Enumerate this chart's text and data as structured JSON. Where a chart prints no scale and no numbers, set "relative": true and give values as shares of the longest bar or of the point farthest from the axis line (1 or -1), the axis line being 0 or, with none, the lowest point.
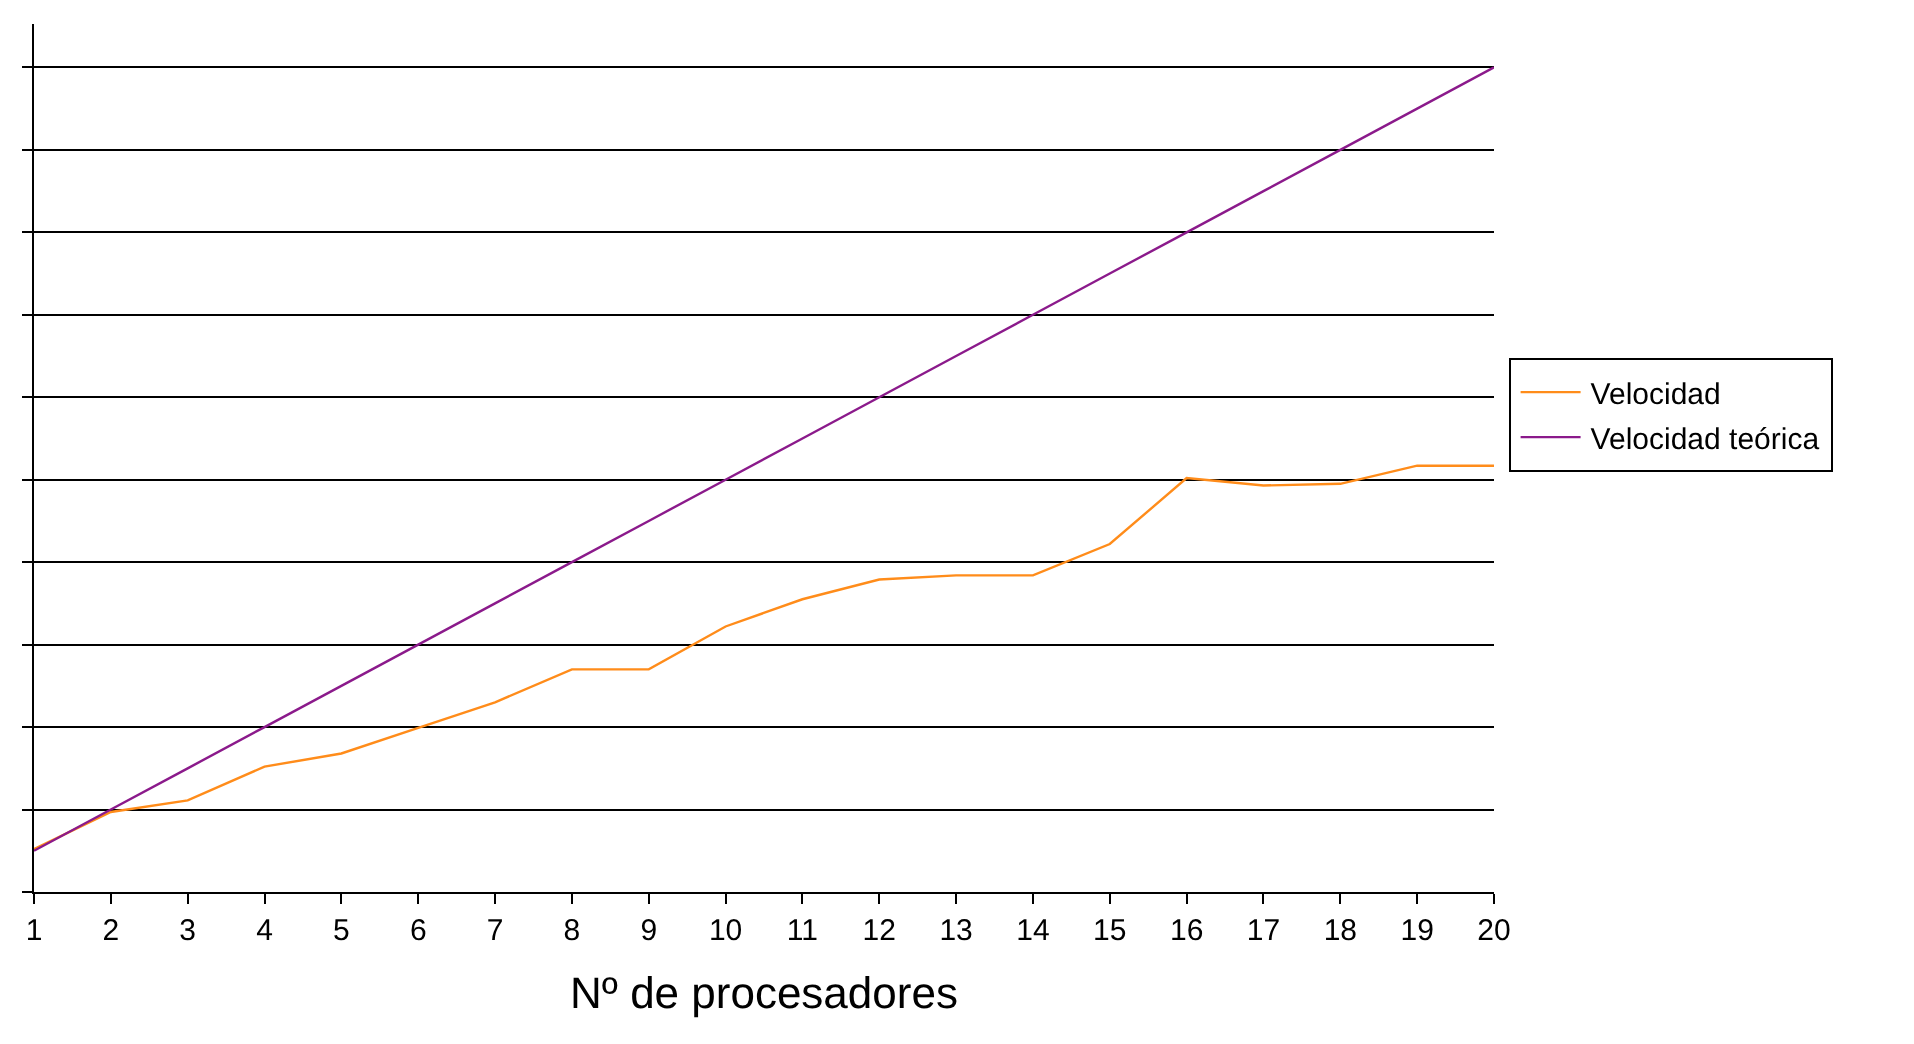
{
  "chart_data": {
    "type": "line",
    "relative": true,
    "xlabel": "Nº de procesadores",
    "x": [
      1,
      2,
      3,
      4,
      5,
      6,
      7,
      8,
      9,
      10,
      11,
      12,
      13,
      14,
      15,
      16,
      17,
      18,
      19,
      20
    ],
    "xlim": [
      1,
      20
    ],
    "xticks": [
      1,
      2,
      3,
      4,
      5,
      6,
      7,
      8,
      9,
      10,
      11,
      12,
      13,
      14,
      15,
      16,
      17,
      18,
      19,
      20
    ],
    "grid": "y",
    "legend": "right",
    "marker": "none",
    "line_style": "solid",
    "series": [
      {
        "name": "Velocidad",
        "color": "#ff8c1a",
        "values": [
          0.052,
          0.097,
          0.111,
          0.152,
          0.168,
          0.199,
          0.23,
          0.27,
          0.27,
          0.322,
          0.355,
          0.379,
          0.384,
          0.384,
          0.422,
          0.502,
          0.493,
          0.495,
          0.517,
          0.517
        ]
      },
      {
        "name": "Velocidad teórica",
        "color": "#8b1a8b",
        "values": [
          0.05,
          0.1,
          0.15,
          0.2,
          0.25,
          0.3,
          0.35,
          0.4,
          0.45,
          0.5,
          0.55,
          0.6,
          0.65,
          0.7,
          0.75,
          0.8,
          0.85,
          0.9,
          0.95,
          1.0
        ]
      }
    ]
  }
}
